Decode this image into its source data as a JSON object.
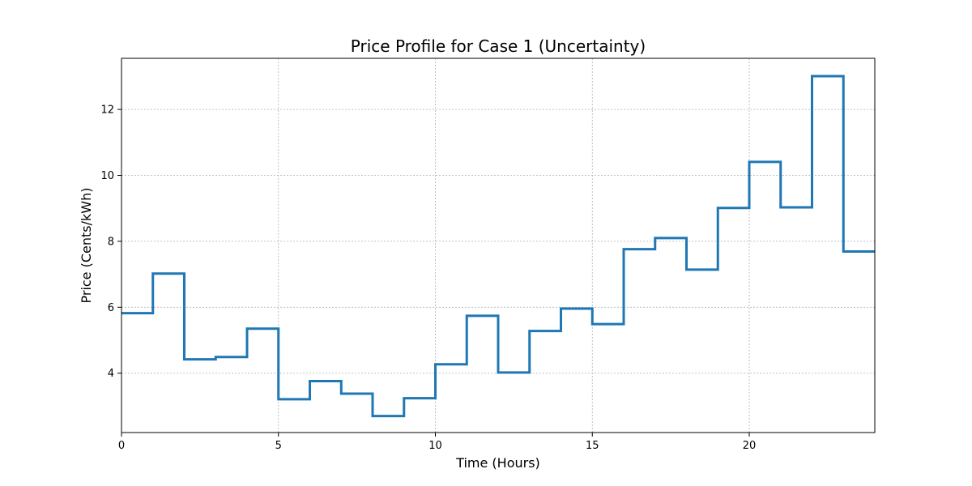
{
  "chart_data": {
    "type": "line",
    "step": "post",
    "title": "Price Profile for Case 1 (Uncertainty)",
    "xlabel": "Time (Hours)",
    "ylabel": "Price (Cents/kWh)",
    "xlim": [
      0,
      24
    ],
    "ylim": [
      2.2,
      13.55
    ],
    "xticks": [
      0,
      5,
      10,
      15,
      20
    ],
    "yticks": [
      4,
      6,
      8,
      10,
      12
    ],
    "grid": true,
    "color": "#1f77b4",
    "series": [
      {
        "x": [
          0,
          1,
          2,
          3,
          4,
          5,
          6,
          7,
          8,
          9,
          10,
          11,
          12,
          13,
          14,
          15,
          16,
          17,
          18,
          19,
          20,
          21,
          22,
          23,
          24
        ],
        "values": [
          5.82,
          7.02,
          4.42,
          4.49,
          5.35,
          3.21,
          3.76,
          3.38,
          2.7,
          3.24,
          4.27,
          5.74,
          4.02,
          5.28,
          5.96,
          5.49,
          7.76,
          8.1,
          7.14,
          9.01,
          10.41,
          9.03,
          13.01,
          7.69,
          7.69
        ]
      }
    ]
  }
}
